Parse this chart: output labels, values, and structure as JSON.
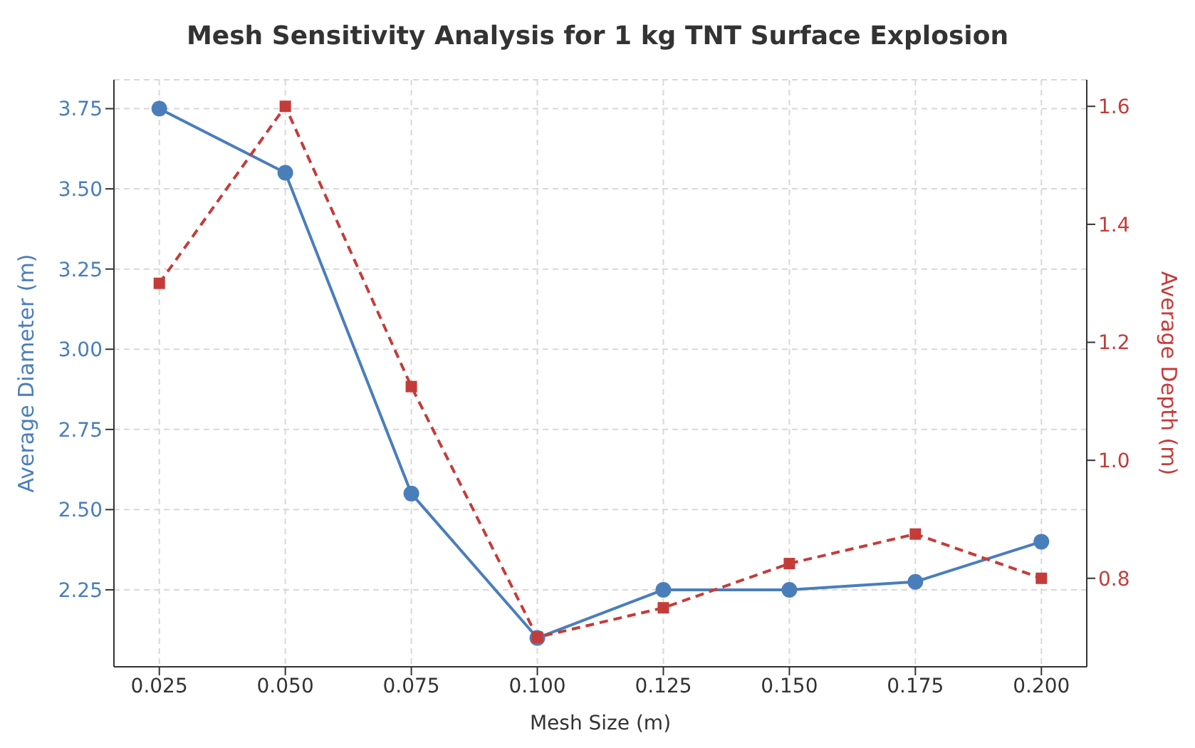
{
  "chart_data": {
    "type": "line",
    "title": "Mesh Sensitivity Analysis for 1 kg TNT Surface Explosion",
    "xlabel": "Mesh Size (m)",
    "ylabel": "Average Diameter (m)",
    "y2label": "Average Depth (m)",
    "x": [
      0.025,
      0.05,
      0.075,
      0.1,
      0.125,
      0.15,
      0.175,
      0.2
    ],
    "series": [
      {
        "color": "#4a7ebb",
        "marker": "circle",
        "line_style": "solid",
        "values": [
          3.75,
          3.55,
          2.55,
          2.1,
          2.25,
          2.25,
          2.275,
          2.4
        ]
      },
      {
        "color": "#c43c39",
        "marker": "square",
        "line_style": "dashed",
        "axis": "y2",
        "values": [
          1.3,
          1.6,
          1.125,
          0.7,
          0.75,
          0.825,
          0.875,
          0.8
        ]
      }
    ],
    "xlim": [
      0.016,
      0.209
    ],
    "xticks": [
      {
        "value": 0.025,
        "label": "0.025"
      },
      {
        "value": 0.05,
        "label": "0.050"
      },
      {
        "value": 0.075,
        "label": "0.075"
      },
      {
        "value": 0.1,
        "label": "0.100"
      },
      {
        "value": 0.125,
        "label": "0.125"
      },
      {
        "value": 0.15,
        "label": "0.150"
      },
      {
        "value": 0.175,
        "label": "0.175"
      },
      {
        "value": 0.2,
        "label": "0.200"
      }
    ],
    "ylim": [
      2.01,
      3.84
    ],
    "yticks": [
      2.25,
      {
        "value": 2.5,
        "label": "2.50"
      },
      2.75,
      {
        "value": 3,
        "label": "3.00"
      },
      3.25,
      {
        "value": 3.5,
        "label": "3.50"
      },
      3.75
    ],
    "y2lim": [
      0.65,
      1.645
    ],
    "y2ticks": [
      0.8,
      {
        "value": 1,
        "label": "1.0"
      },
      1.2,
      1.4,
      1.6
    ],
    "grid": true
  }
}
